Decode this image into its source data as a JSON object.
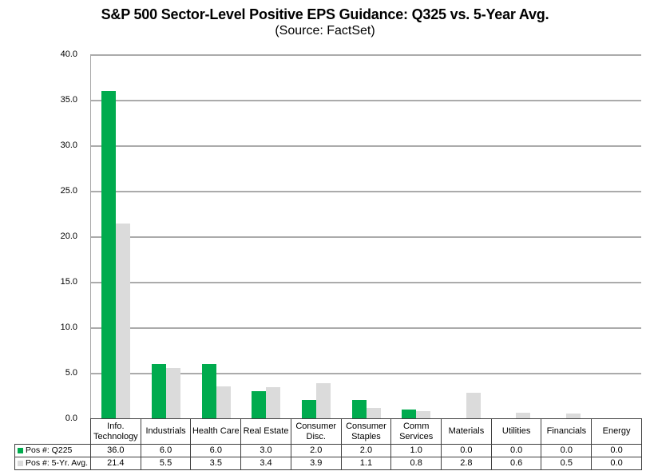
{
  "title": "S&P 500 Sector-Level Positive EPS Guidance: Q325 vs. 5-Year Avg.",
  "subtitle": "(Source: FactSet)",
  "colors": {
    "series_q225": "#00AB4E",
    "series_5yr_avg": "#DBDBDB",
    "gridline": "#ABABAB",
    "axis_line": "#A6A6A6",
    "table_border": "#3F3F3F"
  },
  "chart_data": {
    "type": "bar",
    "title": "S&P 500 Sector-Level Positive EPS Guidance: Q325 vs. 5-Year Avg.",
    "subtitle": "(Source: FactSet)",
    "categories": [
      "Info. Technology",
      "Industrials",
      "Health Care",
      "Real Estate",
      "Consumer Disc.",
      "Consumer Staples",
      "Comm Services",
      "Materials",
      "Utilities",
      "Financials",
      "Energy"
    ],
    "series": [
      {
        "name": "Pos #: Q225",
        "color": "#00AB4E",
        "values": [
          36.0,
          6.0,
          6.0,
          3.0,
          2.0,
          2.0,
          1.0,
          0.0,
          0.0,
          0.0,
          0.0
        ]
      },
      {
        "name": "Pos #: 5-Yr. Avg.",
        "color": "#DBDBDB",
        "values": [
          21.4,
          5.5,
          3.5,
          3.4,
          3.9,
          1.1,
          0.8,
          2.8,
          0.6,
          0.5,
          0.0
        ]
      }
    ],
    "xlabel": "",
    "ylabel": "",
    "ylim": [
      0,
      40
    ],
    "ytick_step": 5,
    "ytick_labels": [
      "40.0",
      "35.0",
      "30.0",
      "25.0",
      "20.0",
      "15.0",
      "10.0",
      "5.0",
      "0.0"
    ],
    "grid": true,
    "legend_position": "bottom-left-table",
    "value_decimals": 1
  }
}
